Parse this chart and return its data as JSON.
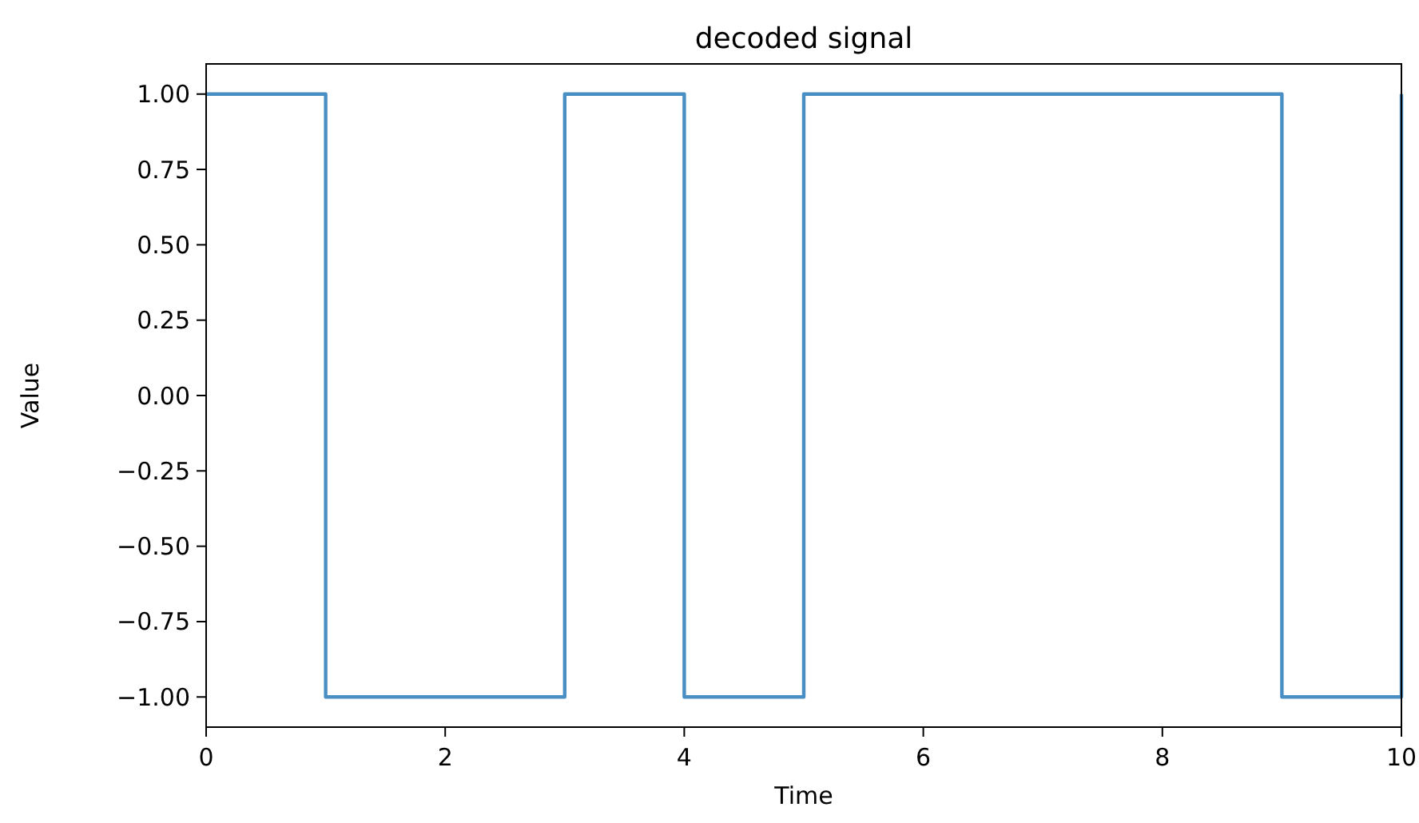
{
  "chart_data": {
    "type": "step",
    "title": "decoded signal",
    "xlabel": "Time",
    "ylabel": "Value",
    "x": [
      0,
      1,
      3,
      4,
      5,
      9,
      10
    ],
    "series": [
      {
        "color": "#4a8fc4",
        "values": [
          1,
          -1,
          1,
          -1,
          1,
          -1,
          1
        ]
      }
    ],
    "xlim": [
      0,
      10
    ],
    "xticks": [
      0,
      2,
      4,
      6,
      8,
      10
    ],
    "ylim": [
      -1.1,
      1.1
    ],
    "yticks": [
      {
        "value": -1,
        "label": "−1.00"
      },
      {
        "value": -0.75,
        "label": "−0.75"
      },
      {
        "value": -0.5,
        "label": "−0.50"
      },
      {
        "value": -0.25,
        "label": "−0.25"
      },
      {
        "value": 0,
        "label": "0.00"
      },
      {
        "value": 0.25,
        "label": "0.25"
      },
      {
        "value": 0.5,
        "label": "0.50"
      },
      {
        "value": 0.75,
        "label": "0.75"
      },
      {
        "value": 1,
        "label": "1.00"
      }
    ],
    "grid": false
  }
}
